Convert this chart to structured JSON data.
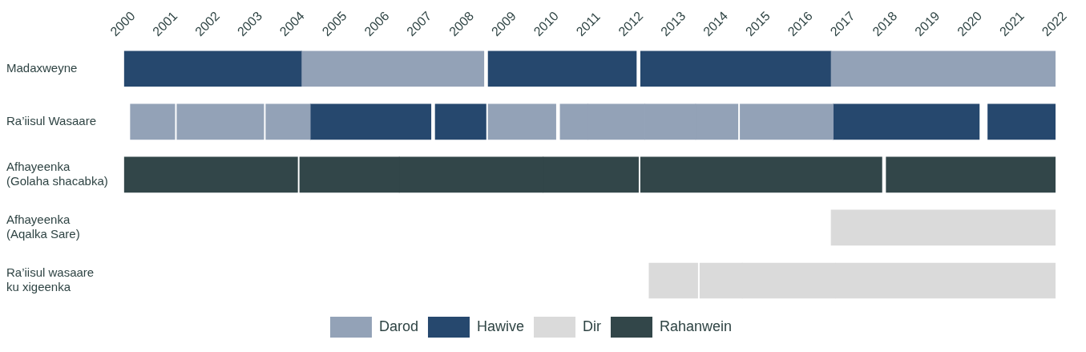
{
  "chart_data": {
    "type": "bar",
    "orientation": "horizontal",
    "categories": [
      "Madaxweyne",
      "Ra’iisul Wasaare",
      "Afhayeenka\n(Golaha shacabka)",
      "Afhayeenka\n(Aqalka Sare)",
      "Ra’iisul wasaare\nku xigeenka"
    ],
    "xlim": [
      2000,
      2022
    ],
    "xticks": [
      2000,
      2001,
      2002,
      2003,
      2004,
      2005,
      2006,
      2007,
      2008,
      2009,
      2010,
      2011,
      2012,
      2013,
      2014,
      2015,
      2016,
      2017,
      2018,
      2019,
      2020,
      2021,
      2022
    ],
    "grid": false,
    "legend": "bottom",
    "series": [
      {
        "name": "Darod",
        "color": "#93a2b7",
        "base": [
          2004.2,
          2000.15,
          null,
          null,
          null
        ],
        "values": [
          4.3,
          1.05,
          null,
          null,
          null
        ]
      },
      {
        "color": "#93a2b7",
        "base": [
          2016.7,
          2001.25,
          null,
          null,
          null
        ],
        "values": [
          5.3,
          2.05,
          null,
          null,
          null
        ]
      },
      {
        "color": "#93a2b7",
        "base": [
          null,
          2003.35,
          null,
          null,
          null
        ],
        "values": [
          null,
          1.05,
          null,
          null,
          null
        ]
      },
      {
        "color": "#93a2b7",
        "base": [
          null,
          2008.6,
          null,
          null,
          null
        ],
        "values": [
          null,
          1.6,
          null,
          null,
          null
        ]
      },
      {
        "color": "#93a2b7",
        "base": [
          null,
          2010.3,
          null,
          null,
          null
        ],
        "values": [
          null,
          0.65,
          null,
          null,
          null
        ]
      },
      {
        "color": "#93a2b7",
        "base": [
          null,
          2010.95,
          null,
          null,
          null
        ],
        "values": [
          null,
          1.35,
          null,
          null,
          null
        ]
      },
      {
        "color": "#93a2b7",
        "base": [
          null,
          2012.3,
          null,
          null,
          null
        ],
        "values": [
          null,
          1.2,
          null,
          null,
          null
        ]
      },
      {
        "color": "#93a2b7",
        "base": [
          null,
          2013.5,
          null,
          null,
          null
        ],
        "values": [
          null,
          1.0,
          null,
          null,
          null
        ]
      },
      {
        "color": "#93a2b7",
        "base": [
          null,
          2014.55,
          null,
          null,
          null
        ],
        "values": [
          null,
          2.2,
          null,
          null,
          null
        ]
      },
      {
        "name": "Hawive",
        "color": "#26486e",
        "base": [
          2000,
          2004.4,
          null,
          null,
          null
        ],
        "values": [
          4.2,
          2.85,
          null,
          null,
          null
        ]
      },
      {
        "color": "#26486e",
        "base": [
          2008.6,
          2007.35,
          null,
          null,
          null
        ],
        "values": [
          3.5,
          1.2,
          null,
          null,
          null
        ]
      },
      {
        "color": "#26486e",
        "base": [
          2012.2,
          2016.75,
          null,
          null,
          null
        ],
        "values": [
          4.5,
          3.45,
          null,
          null,
          null
        ]
      },
      {
        "color": "#26486e",
        "base": [
          null,
          2020.4,
          null,
          null,
          null
        ],
        "values": [
          null,
          1.6,
          null,
          null,
          null
        ]
      },
      {
        "name": "Dir",
        "color": "#dadada",
        "base": [
          null,
          null,
          null,
          2016.7,
          2012.4
        ],
        "values": [
          null,
          null,
          null,
          5.3,
          1.15
        ]
      },
      {
        "color": "#dadada",
        "base": [
          null,
          null,
          null,
          null,
          2013.6
        ],
        "values": [
          null,
          null,
          null,
          null,
          1.0
        ]
      },
      {
        "color": "#dadada",
        "base": [
          null,
          null,
          null,
          null,
          2014.6
        ],
        "values": [
          null,
          null,
          null,
          null,
          2.2
        ]
      },
      {
        "color": "#dadada",
        "base": [
          null,
          null,
          null,
          null,
          2016.8
        ],
        "values": [
          null,
          null,
          null,
          null,
          5.2
        ]
      },
      {
        "name": "Rahanwein",
        "color": "#324649",
        "base": [
          null,
          null,
          2000,
          null,
          null
        ],
        "values": [
          null,
          null,
          4.1,
          null,
          null
        ]
      },
      {
        "color": "#324649",
        "base": [
          null,
          null,
          2004.15,
          null,
          null
        ],
        "values": [
          null,
          null,
          2.35,
          null,
          null
        ]
      },
      {
        "color": "#324649",
        "base": [
          null,
          null,
          2006.5,
          null,
          null
        ],
        "values": [
          null,
          null,
          3.4,
          null,
          null
        ]
      },
      {
        "color": "#324649",
        "base": [
          null,
          null,
          2009.9,
          null,
          null
        ],
        "values": [
          null,
          null,
          2.25,
          null,
          null
        ]
      },
      {
        "color": "#324649",
        "base": [
          null,
          null,
          2012.2,
          null,
          null
        ],
        "values": [
          null,
          null,
          5.7,
          null,
          null
        ]
      },
      {
        "color": "#324649",
        "base": [
          null,
          null,
          2018.0,
          null,
          null
        ],
        "values": [
          null,
          null,
          4.0,
          null,
          null
        ]
      }
    ]
  }
}
